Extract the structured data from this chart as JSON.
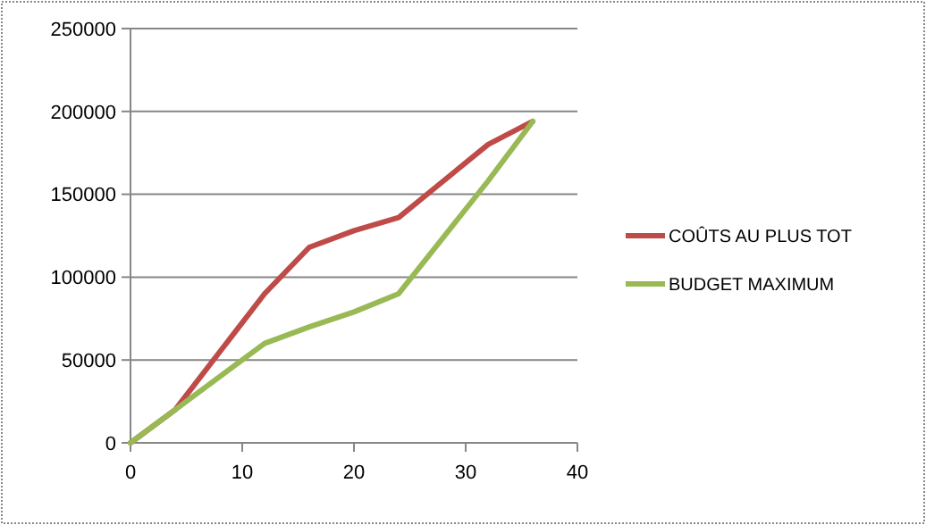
{
  "chart_data": {
    "type": "line",
    "xlim": [
      0,
      40
    ],
    "xticks": [
      0,
      10,
      20,
      30,
      40
    ],
    "ylim": [
      0,
      250000
    ],
    "yticks": [
      0,
      50000,
      100000,
      150000,
      200000,
      250000
    ],
    "grid": "y",
    "legend": "right",
    "marker": "none",
    "series": [
      {
        "name": "COÛTS AU PLUS TOT",
        "color": "#be4b48",
        "x": [
          0,
          4,
          12,
          16,
          20,
          24,
          28,
          32,
          36
        ],
        "values": [
          0,
          20000,
          90000,
          118000,
          128000,
          136000,
          158000,
          180000,
          194000
        ]
      },
      {
        "name": "BUDGET MAXIMUM",
        "color": "#98b954",
        "x": [
          0,
          4,
          12,
          16,
          20,
          24,
          32,
          36
        ],
        "values": [
          0,
          20000,
          60000,
          70000,
          79000,
          90000,
          158000,
          194000
        ]
      }
    ]
  }
}
